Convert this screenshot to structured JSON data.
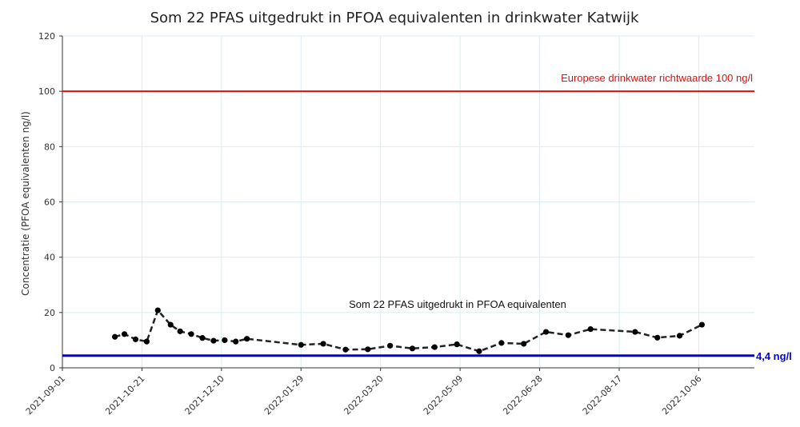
{
  "chart_data": {
    "type": "line",
    "title": "Som 22 PFAS uitgedrukt in PFOA equivalenten in drinkwater Katwijk",
    "xlabel": "",
    "ylabel": "Concentratie (PFOA equivalenten ng/l)",
    "ylim": [
      0,
      120
    ],
    "y_ticks": [
      "0",
      "20",
      "40",
      "60",
      "80",
      "100",
      "120"
    ],
    "xlim": [
      "2021-09-01",
      "2022-11-10"
    ],
    "x_ticks": [
      "2021-09-01",
      "2021-10-21",
      "2021-12-10",
      "2022-01-29",
      "2022-03-20",
      "2022-05-09",
      "2022-06-28",
      "2022-08-17",
      "2022-10-06"
    ],
    "grid": true,
    "series": [
      {
        "name": "Som 22 PFAS uitgedrukt in PFOA equivalenten",
        "style": "dashed",
        "color": "#222222",
        "x": [
          "2021-10-04",
          "2021-10-10",
          "2021-10-17",
          "2021-10-24",
          "2021-10-31",
          "2021-11-08",
          "2021-11-14",
          "2021-11-21",
          "2021-11-28",
          "2021-12-05",
          "2021-12-12",
          "2021-12-19",
          "2021-12-26",
          "2022-01-29",
          "2022-02-12",
          "2022-02-26",
          "2022-03-12",
          "2022-03-26",
          "2022-04-09",
          "2022-04-23",
          "2022-05-07",
          "2022-05-21",
          "2022-06-04",
          "2022-06-18",
          "2022-07-02",
          "2022-07-16",
          "2022-07-30",
          "2022-08-27",
          "2022-09-10",
          "2022-09-24",
          "2022-10-08"
        ],
        "values": [
          11.2,
          12.2,
          10.3,
          9.5,
          20.8,
          15.6,
          13.2,
          12.2,
          10.8,
          9.8,
          10.0,
          9.5,
          10.5,
          8.3,
          8.7,
          6.6,
          6.7,
          8.0,
          7.0,
          7.5,
          8.5,
          6.0,
          9.0,
          8.7,
          13.0,
          11.8,
          14.0,
          13.0,
          10.9,
          11.6,
          15.6
        ]
      }
    ],
    "reference_lines": [
      {
        "y": 100,
        "color": "#dd1111",
        "label": "Europese drinkwater richtwaarde 100 ng/l"
      },
      {
        "y": 4.4,
        "color": "#0000dd",
        "label": "4,4 ng/l"
      }
    ],
    "annotations": {
      "series_label": "Som 22 PFAS uitgedrukt in PFOA equivalenten"
    }
  }
}
